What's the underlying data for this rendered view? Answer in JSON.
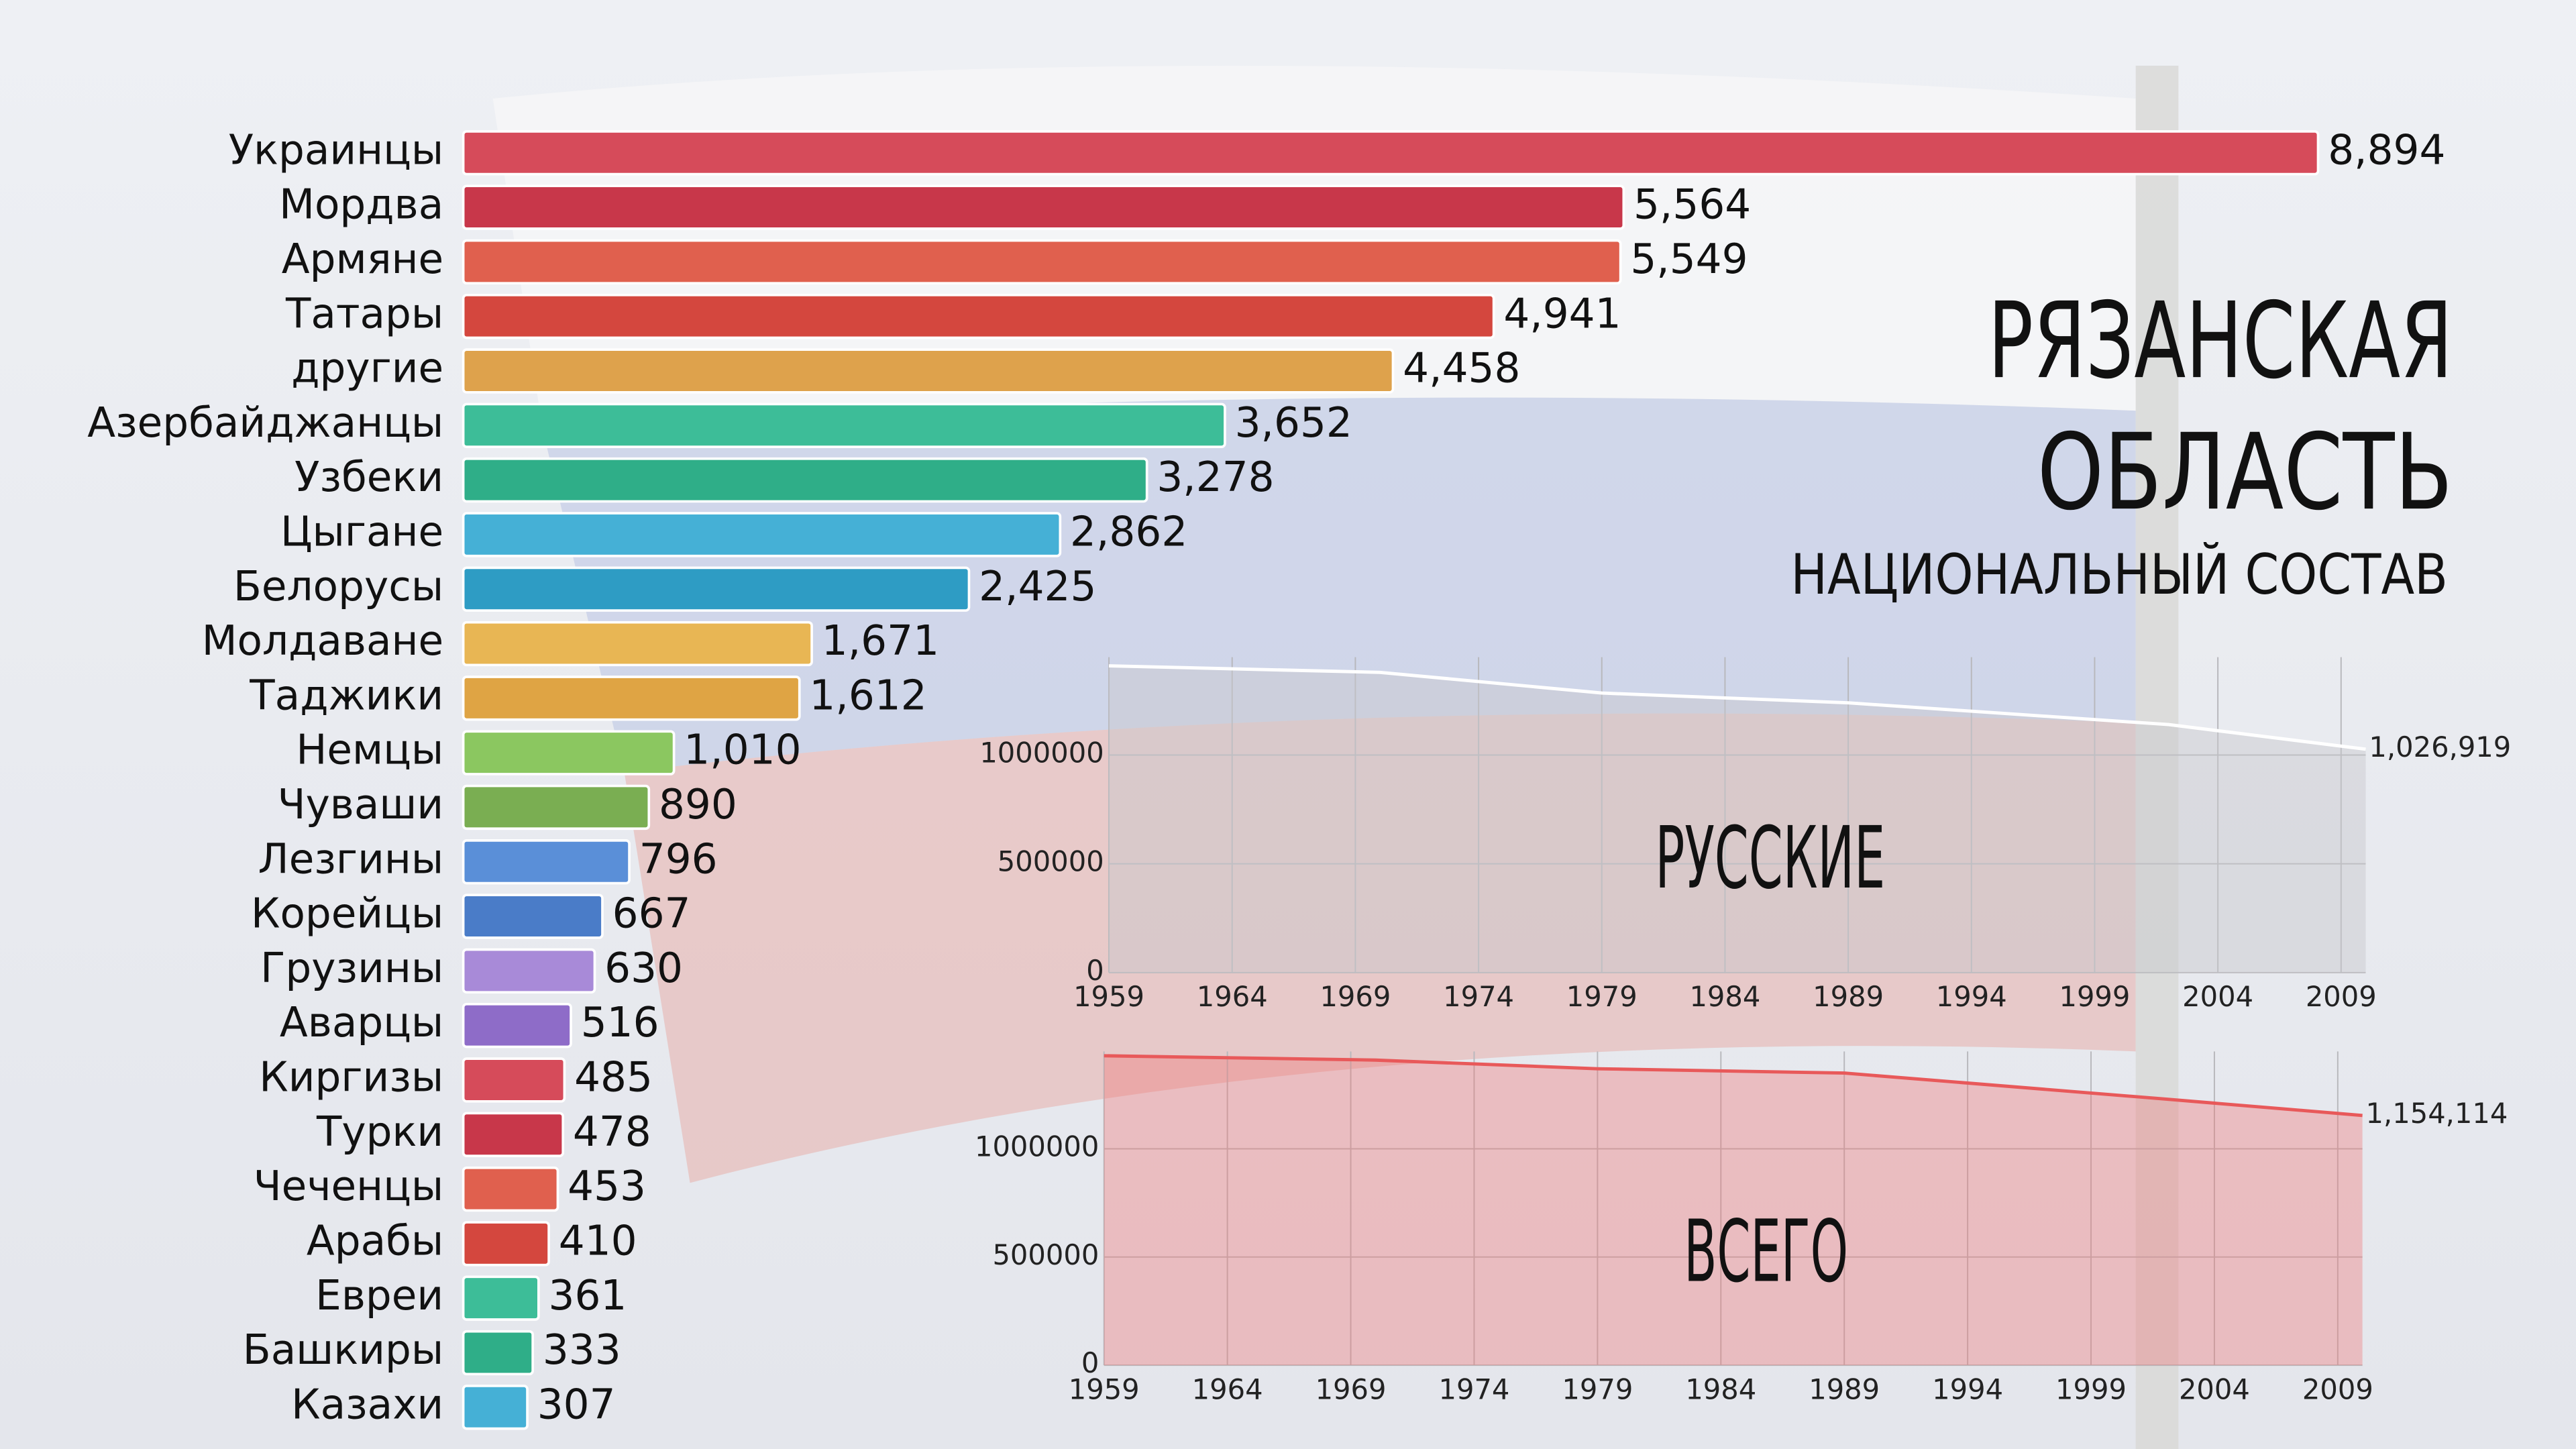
{
  "chart_data": [
    {
      "type": "bar",
      "title_lines": [
        "РЯЗАНСКАЯ",
        "ОБЛАСТЬ"
      ],
      "subtitle": "НАЦИОНАЛЬНЫЙ СОСТАВ",
      "categories": [
        "Украинцы",
        "Мордва",
        "Армяне",
        "Татары",
        "другие",
        "Азербайджанцы",
        "Узбеки",
        "Цыгане",
        "Белорусы",
        "Молдаване",
        "Таджики",
        "Немцы",
        "Чуваши",
        "Лезгины",
        "Корейцы",
        "Грузины",
        "Аварцы",
        "Киргизы",
        "Турки",
        "Чеченцы",
        "Арабы",
        "Евреи",
        "Башкиры",
        "Казахи"
      ],
      "values": [
        8894,
        5564,
        5549,
        4941,
        4458,
        3652,
        3278,
        2862,
        2425,
        1671,
        1612,
        1010,
        890,
        796,
        667,
        630,
        516,
        485,
        478,
        453,
        410,
        361,
        333,
        307
      ],
      "value_labels": [
        "8,894",
        "5,564",
        "5,549",
        "4,941",
        "4,458",
        "3,652",
        "3,278",
        "2,862",
        "2,425",
        "1,671",
        "1,612",
        "1,010",
        "890",
        "796",
        "667",
        "630",
        "516",
        "485",
        "478",
        "453",
        "410",
        "361",
        "333",
        "307"
      ],
      "colors": [
        "#d64b5a",
        "#c8374a",
        "#e0604e",
        "#d4473e",
        "#dea24c",
        "#3dbd98",
        "#2fae88",
        "#45b0d6",
        "#2e9cc4",
        "#e8b654",
        "#dfa444",
        "#8bc760",
        "#7aae52",
        "#5a8fd8",
        "#4a7cc8",
        "#a88ad8",
        "#8e6cc8",
        "#d64b5a",
        "#c8374a",
        "#e0604e",
        "#d4473e",
        "#3dbd98",
        "#2fae88",
        "#45b0d6"
      ]
    },
    {
      "type": "area",
      "label": "РУССКИЕ",
      "x": [
        1959,
        1970,
        1979,
        1989,
        2002,
        2010
      ],
      "values": [
        1410000,
        1380000,
        1285000,
        1240000,
        1140000,
        1026919
      ],
      "value_labels": [
        null,
        null,
        null,
        null,
        null,
        "1,026,919"
      ],
      "color": "#ffffff",
      "fill": "rgba(200,200,205,0.45)",
      "xlim": [
        1959,
        2010
      ],
      "ylim": [
        0,
        1450000
      ],
      "xticks": [
        1959,
        1964,
        1969,
        1974,
        1979,
        1984,
        1989,
        1994,
        1999,
        2004,
        2009
      ],
      "yticks": [
        0,
        500000,
        1000000
      ],
      "grid": true
    },
    {
      "type": "area",
      "label": "ВСЕГО",
      "x": [
        1959,
        1970,
        1979,
        1989,
        2002,
        2010
      ],
      "values": [
        1430000,
        1410000,
        1370000,
        1350000,
        1230000,
        1154114
      ],
      "value_labels": [
        null,
        null,
        null,
        null,
        null,
        "1,154,114"
      ],
      "color": "#e8595a",
      "fill": "rgba(240,110,110,0.35)",
      "xlim": [
        1959,
        2010
      ],
      "ylim": [
        0,
        1450000
      ],
      "xticks": [
        1959,
        1964,
        1969,
        1974,
        1979,
        1984,
        1989,
        1994,
        1999,
        2004,
        2009
      ],
      "yticks": [
        0,
        500000,
        1000000
      ],
      "grid": true
    }
  ]
}
